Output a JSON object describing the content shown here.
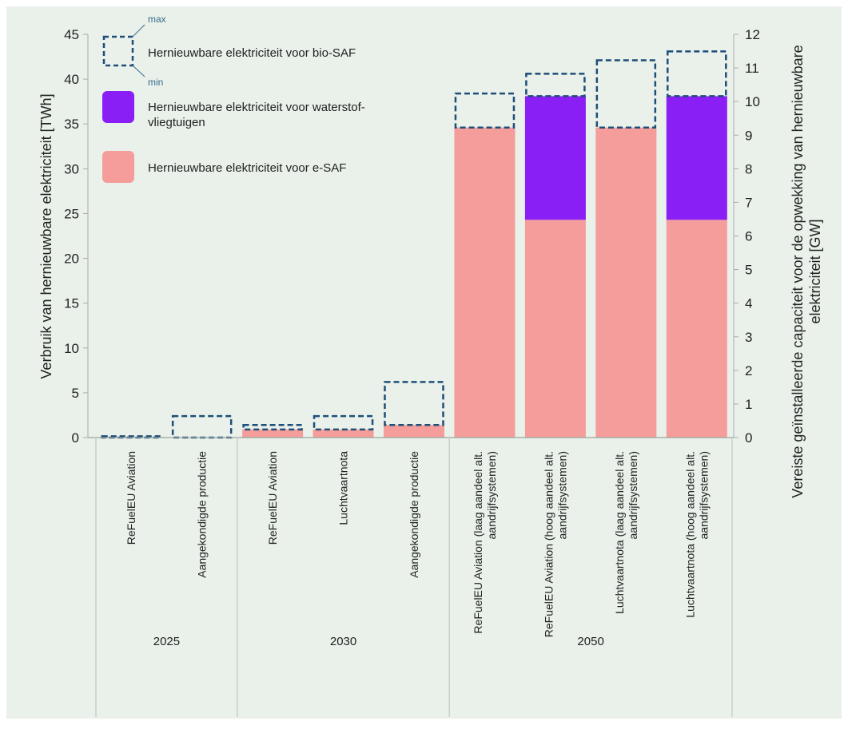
{
  "chart_data": {
    "type": "bar",
    "stacked": true,
    "y_axis_left": {
      "label": "Verbruik van hernieuwbare elektriciteit [TWh]",
      "range": [
        0,
        45
      ],
      "ticks": [
        0,
        5,
        10,
        15,
        20,
        25,
        30,
        35,
        40,
        45
      ]
    },
    "y_axis_right": {
      "label_line1": "Vereiste geïnstalleerde capaciteit voor de opwekking van hernieuwbare",
      "label_line2": "elektriciteit [GW]",
      "range": [
        0,
        12
      ],
      "ticks": [
        0,
        1,
        2,
        3,
        4,
        5,
        6,
        7,
        8,
        9,
        10,
        11,
        12
      ]
    },
    "groups": [
      {
        "label": "2025",
        "count": 2
      },
      {
        "label": "2030",
        "count": 3
      },
      {
        "label": "2050",
        "count": 4
      }
    ],
    "categories": [
      {
        "lines": [
          "ReFuelEU Aviation"
        ]
      },
      {
        "lines": [
          "Aangekondigde productie"
        ]
      },
      {
        "lines": [
          "ReFuelEU Aviation"
        ]
      },
      {
        "lines": [
          "Luchtvaartnota"
        ]
      },
      {
        "lines": [
          "Aangekondigde productie"
        ]
      },
      {
        "lines": [
          "ReFuelEU Aviation (laag aandeel alt.",
          "aandrijfsystemen)"
        ]
      },
      {
        "lines": [
          "ReFuelEU Aviation (hoog aandeel alt.",
          "aandrijfsystemen)"
        ]
      },
      {
        "lines": [
          "Luchtvaartnota (laag aandeel alt.",
          "aandrijfsystemen)"
        ]
      },
      {
        "lines": [
          "Luchtvaartnota (hoog aandeel alt.",
          "aandrijfsystemen)"
        ]
      }
    ],
    "series": [
      {
        "name": "Hernieuwbare elektriciteit voor e-SAF",
        "color": "#f49d9a",
        "values": [
          0,
          0,
          0.9,
          0.9,
          1.4,
          34.6,
          24.3,
          34.6,
          24.3
        ]
      },
      {
        "name": "Hernieuwbare elektriciteit voor waterstof-vliegtuigen",
        "name_lines": [
          "Hernieuwbare elektriciteit voor waterstof-",
          "vliegtuigen"
        ],
        "color": "#8a1ff5",
        "values": [
          0,
          0,
          0,
          0,
          0,
          0,
          13.8,
          0,
          13.8
        ]
      },
      {
        "name": "Hernieuwbare elektriciteit voor bio-SAF",
        "color": "#1f4e79",
        "style": "dashed-outline",
        "min_values": [
          0,
          0,
          0.9,
          0.9,
          1.4,
          34.6,
          38.1,
          34.6,
          38.1
        ],
        "max_values": [
          0.15,
          2.4,
          1.4,
          2.4,
          6.2,
          38.4,
          40.6,
          42.1,
          43.1
        ]
      }
    ],
    "legend_max_label": "max",
    "legend_min_label": "min",
    "legend_position": "top-left",
    "background": "#e9f1ea",
    "grid": false
  }
}
